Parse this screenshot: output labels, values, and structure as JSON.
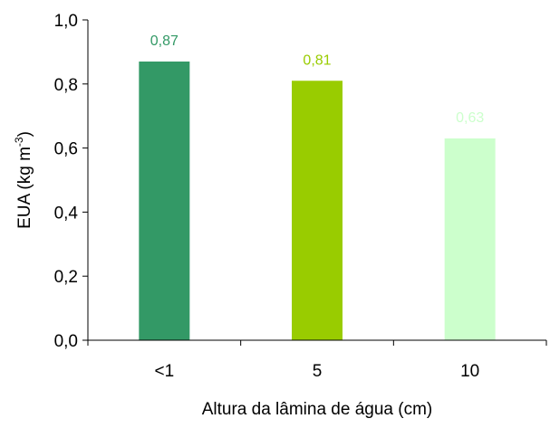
{
  "chart_data": {
    "type": "bar",
    "title": "",
    "xlabel": "Altura da lâmina de água (cm)",
    "ylabel_main": "EUA  (kg m",
    "ylabel_sup": "-3",
    "ylabel_close": ")",
    "categories": [
      "<1",
      "5",
      "10"
    ],
    "values": [
      0.87,
      0.81,
      0.63
    ],
    "value_labels": [
      "0,87",
      "0,81",
      "0,63"
    ],
    "ylim": [
      0,
      1
    ],
    "yticks": [
      0,
      0.2,
      0.4,
      0.6,
      0.8,
      1.0
    ],
    "ytick_labels": [
      "0,0",
      "0,2",
      "0,4",
      "0,6",
      "0,8",
      "1,0"
    ],
    "bar_colors": [
      "#339966",
      "#99CC00",
      "#CCFFCC"
    ],
    "label_colors": [
      "#339966",
      "#99CC00",
      "#CCFFCC"
    ],
    "grid": false,
    "legend": "none"
  }
}
